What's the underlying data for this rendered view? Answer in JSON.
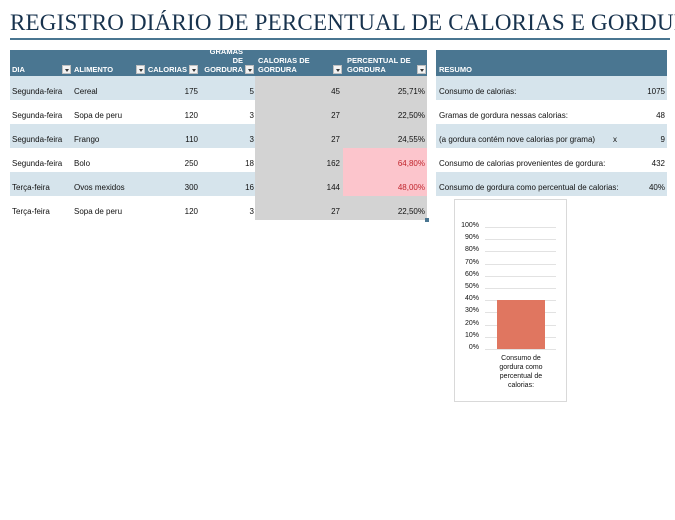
{
  "title": "REGISTRO DIÁRIO DE PERCENTUAL DE CALORIAS E GORDURA",
  "table": {
    "headers": [
      "DIA",
      "ALIMENTO",
      "CALORIAS",
      "GRAMAS DE GORDURA",
      "CALORIAS DE GORDURA",
      "PERCENTUAL DE GORDURA"
    ],
    "rows": [
      {
        "dia": "Segunda-feira",
        "alimento": "Cereal",
        "calorias": "175",
        "gramas": "5",
        "cal_gordura": "45",
        "percentual": "25,71%"
      },
      {
        "dia": "Segunda-feira",
        "alimento": "Sopa de peru",
        "calorias": "120",
        "gramas": "3",
        "cal_gordura": "27",
        "percentual": "22,50%"
      },
      {
        "dia": "Segunda-feira",
        "alimento": "Frango",
        "calorias": "110",
        "gramas": "3",
        "cal_gordura": "27",
        "percentual": "24,55%"
      },
      {
        "dia": "Segunda-feira",
        "alimento": "Bolo",
        "calorias": "250",
        "gramas": "18",
        "cal_gordura": "162",
        "percentual": "64,80%"
      },
      {
        "dia": "Terça-feira",
        "alimento": "Ovos mexidos",
        "calorias": "300",
        "gramas": "16",
        "cal_gordura": "144",
        "percentual": "48,00%"
      },
      {
        "dia": "Terça-feira",
        "alimento": "Sopa de peru",
        "calorias": "120",
        "gramas": "3",
        "cal_gordura": "27",
        "percentual": "22,50%"
      }
    ]
  },
  "summary": {
    "header": "RESUMO",
    "rows": [
      {
        "label": "Consumo de calorias:",
        "mid": "",
        "value": "1075"
      },
      {
        "label": "Gramas de gordura nessas calorias:",
        "mid": "",
        "value": "48"
      },
      {
        "label": "(a gordura contém nove calorias por grama)",
        "mid": "x",
        "value": "9"
      },
      {
        "label": "Consumo de calorias provenientes de gordura:",
        "mid": "",
        "value": "432"
      },
      {
        "label": "Consumo de gordura como percentual de calorias:",
        "mid": "",
        "value": "40%"
      }
    ]
  },
  "chart_data": {
    "type": "bar",
    "categories": [
      "Consumo de gordura como percentual de calorias:"
    ],
    "values": [
      0.4
    ],
    "ylim": [
      0,
      1
    ],
    "yticks": [
      "0%",
      "10%",
      "20%",
      "30%",
      "40%",
      "50%",
      "60%",
      "70%",
      "80%",
      "90%",
      "100%"
    ],
    "bar_color": "#e07660",
    "grid": true
  },
  "colors": {
    "header": "#4a7691",
    "band": "#d6e4ec",
    "highlight": "#fcc5cc",
    "highlight_text": "#c0262d"
  }
}
